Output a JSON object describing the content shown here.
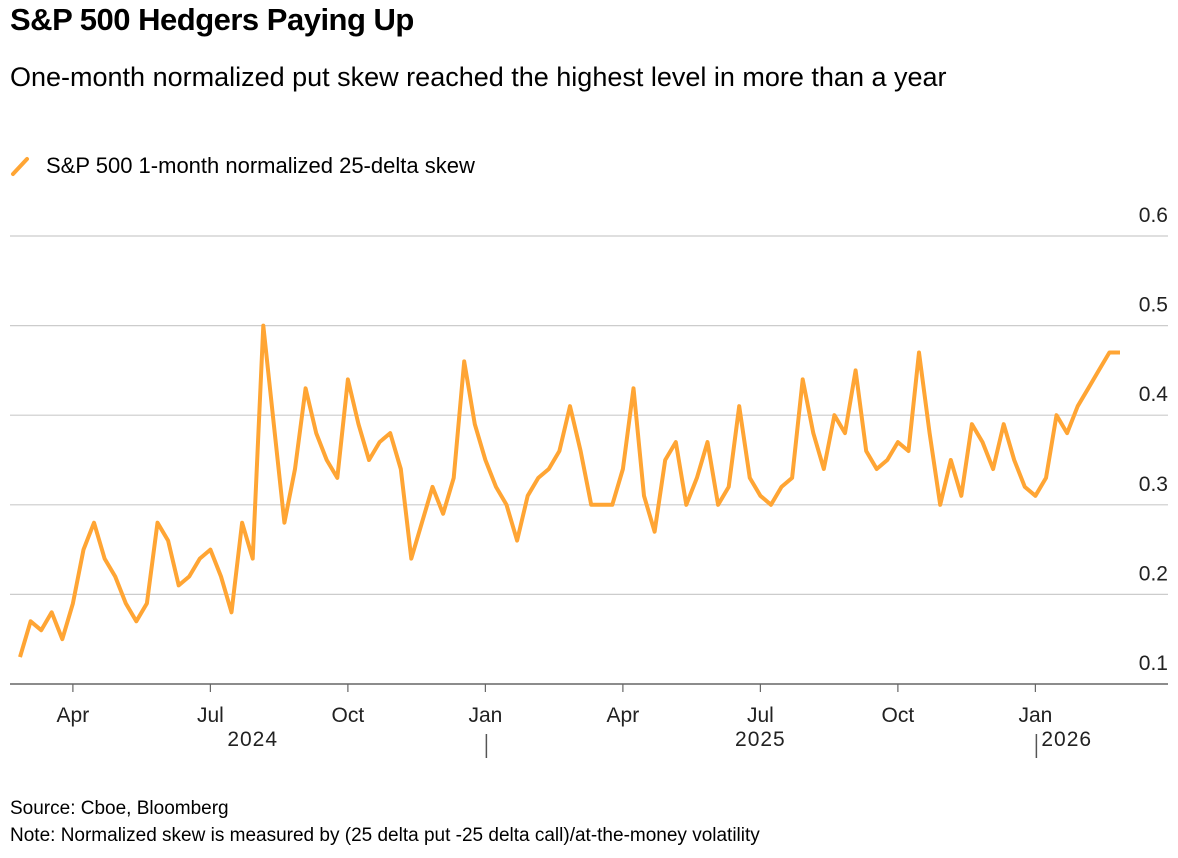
{
  "chart_data": {
    "type": "line",
    "title": "S&P 500 Hedgers Paying Up",
    "subtitle": "One-month normalized put skew reached the highest level in more than a year",
    "categories": [
      null,
      null,
      null,
      null,
      null,
      "Apr",
      null,
      null,
      null,
      null,
      null,
      null,
      null,
      null,
      null,
      null,
      null,
      null,
      "Jul",
      null,
      null,
      null,
      null,
      null,
      null,
      null,
      null,
      null,
      null,
      null,
      null,
      "Oct",
      null,
      null,
      null,
      null,
      null,
      null,
      null,
      null,
      null,
      null,
      null,
      null,
      "Jan",
      null,
      null,
      null,
      null,
      null,
      null,
      null,
      null,
      null,
      null,
      null,
      null,
      "Apr",
      null,
      null,
      null,
      null,
      null,
      null,
      null,
      null,
      null,
      null,
      null,
      null,
      "Jul",
      null,
      null,
      null,
      null,
      null,
      null,
      null,
      null,
      null,
      null,
      null,
      null,
      "Oct",
      null,
      null,
      null,
      null,
      null,
      null,
      null,
      null,
      null,
      null,
      null,
      null,
      "Jan",
      null,
      null,
      null,
      null,
      null,
      null,
      null,
      null
    ],
    "year_labels": [
      "2024",
      "2025",
      "2026"
    ],
    "series": [
      {
        "name": "S&P 500 1-month normalized 25-delta skew",
        "color": "#ffa534",
        "values": [
          0.13,
          0.17,
          0.16,
          0.18,
          0.15,
          0.19,
          0.25,
          0.28,
          0.24,
          0.22,
          0.19,
          0.17,
          0.19,
          0.28,
          0.26,
          0.21,
          0.22,
          0.24,
          0.25,
          0.22,
          0.18,
          0.28,
          0.24,
          0.5,
          0.39,
          0.28,
          0.34,
          0.43,
          0.38,
          0.35,
          0.33,
          0.44,
          0.39,
          0.35,
          0.37,
          0.38,
          0.34,
          0.24,
          0.28,
          0.32,
          0.29,
          0.33,
          0.46,
          0.39,
          0.35,
          0.32,
          0.3,
          0.26,
          0.31,
          0.33,
          0.34,
          0.36,
          0.41,
          0.36,
          0.3,
          0.3,
          0.3,
          0.34,
          0.43,
          0.31,
          0.27,
          0.35,
          0.37,
          0.3,
          0.33,
          0.37,
          0.3,
          0.32,
          0.41,
          0.33,
          0.31,
          0.3,
          0.32,
          0.33,
          0.44,
          0.38,
          0.34,
          0.4,
          0.38,
          0.45,
          0.36,
          0.34,
          0.35,
          0.37,
          0.36,
          0.47,
          0.38,
          0.3,
          0.35,
          0.31,
          0.39,
          0.37,
          0.34,
          0.39,
          0.35,
          0.32,
          0.31,
          0.33,
          0.4,
          0.38,
          0.41,
          0.43,
          0.45,
          0.47,
          0.47
        ]
      }
    ],
    "ylim": [
      0.1,
      0.6
    ],
    "yticks": [
      0.1,
      0.2,
      0.3,
      0.4,
      0.5,
      0.6
    ],
    "grid": true,
    "source": "Source: Cboe, Bloomberg",
    "note": "Note: Normalized skew is measured by (25 delta put -25 delta call)/at-the-money volatility"
  }
}
